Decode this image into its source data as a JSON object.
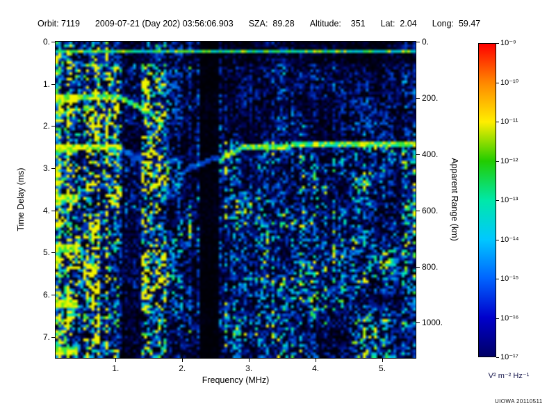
{
  "header": {
    "orbit": "Orbit: 7119",
    "datetime": "2009-07-21 (Day 202) 03:56:06.903",
    "sza": "SZA:  89.28",
    "altitude": "Altitude:    351",
    "lat": "Lat:  2.04",
    "long": "Long:  59.47"
  },
  "watermark": "UIOWA 20110511",
  "chart_data": {
    "type": "heatmap",
    "title": "",
    "x_axis": {
      "label": "Frequency (MHz)",
      "min": 0.1,
      "max": 5.5,
      "ticks": [
        {
          "v": 1,
          "label": "1."
        },
        {
          "v": 2,
          "label": "2."
        },
        {
          "v": 3,
          "label": "3."
        },
        {
          "v": 4,
          "label": "4."
        },
        {
          "v": 5,
          "label": "5."
        }
      ]
    },
    "y_axis": {
      "label": "Time Delay (ms)",
      "min": 0,
      "max": 7.5,
      "ticks": [
        {
          "v": 0,
          "label": "0."
        },
        {
          "v": 1,
          "label": "1."
        },
        {
          "v": 2,
          "label": "2."
        },
        {
          "v": 3,
          "label": "3."
        },
        {
          "v": 4,
          "label": "4."
        },
        {
          "v": 5,
          "label": "5."
        },
        {
          "v": 6,
          "label": "6."
        },
        {
          "v": 7,
          "label": "7."
        }
      ]
    },
    "y2_axis": {
      "label": "Apparent Range (km)",
      "km_per_ms": 150,
      "ticks": [
        {
          "v": 0,
          "label": "0."
        },
        {
          "v": 200,
          "label": "200."
        },
        {
          "v": 400,
          "label": "400."
        },
        {
          "v": 600,
          "label": "600."
        },
        {
          "v": 800,
          "label": "800."
        },
        {
          "v": 1000,
          "label": "1000."
        }
      ]
    },
    "colorbar": {
      "unit": "V² m⁻² Hz⁻¹",
      "scale_min": "10⁻¹⁷",
      "scale_max": "10⁻⁹",
      "tick_labels": [
        "10⁻⁹",
        "10⁻¹⁰",
        "10⁻¹¹",
        "10⁻¹²",
        "10⁻¹³",
        "10⁻¹⁴",
        "10⁻¹⁵",
        "10⁻¹⁶",
        "10⁻¹⁷"
      ],
      "gradient": [
        "#ff0000",
        "#ff8800",
        "#ffee00",
        "#22cc00",
        "#00e8a8",
        "#00c8ff",
        "#0064ff",
        "#0000cc",
        "#000066"
      ]
    },
    "colormap_stops": [
      [
        0.0,
        "#000004"
      ],
      [
        0.12,
        "#000048"
      ],
      [
        0.3,
        "#0020a8"
      ],
      [
        0.5,
        "#0064e0"
      ],
      [
        0.65,
        "#00b8e8"
      ],
      [
        0.78,
        "#00e8b0"
      ],
      [
        0.88,
        "#32e032"
      ],
      [
        0.96,
        "#b4f000"
      ],
      [
        1.0,
        "#f4f400"
      ]
    ],
    "seed": 20110511,
    "features": {
      "transmit_pulse_line": {
        "delay_ms": 0.22,
        "f_start": 0.1,
        "f_end": 5.5,
        "intensity": 0.85
      },
      "ionosphere_echo_trace": {
        "points": [
          [
            2.55,
            2.8
          ],
          [
            2.9,
            2.5
          ],
          [
            4.0,
            2.45
          ],
          [
            5.5,
            2.42
          ]
        ],
        "intensity": 0.88
      },
      "cusp_trace": {
        "points": [
          [
            0.1,
            1.28
          ],
          [
            1.1,
            1.35
          ],
          [
            1.45,
            1.62
          ],
          [
            1.68,
            1.95
          ]
        ],
        "intensity": 0.85
      },
      "second_harmonic_band": {
        "points": [
          [
            0.1,
            2.52
          ],
          [
            1.05,
            2.5
          ]
        ],
        "intensity": 0.92
      },
      "fading_trace": {
        "points": [
          [
            1.05,
            2.55
          ],
          [
            1.5,
            2.95
          ],
          [
            1.72,
            3.5
          ]
        ],
        "intensity": 0.45
      },
      "echo_cusp_curve": {
        "points": [
          [
            1.75,
            3.7
          ],
          [
            2.05,
            3.0
          ],
          [
            2.5,
            2.75
          ]
        ],
        "intensity": 0.4
      },
      "attenuation_gap": {
        "f_start": 2.24,
        "f_end": 2.54
      },
      "quiet_gap": {
        "f_start": 1.08,
        "f_end": 1.38
      },
      "cyclotron_period_mhz": 0.14,
      "left_edge_blob_delays": [
        1.3,
        2.5,
        3.7,
        4.9,
        6.2,
        7.3
      ]
    }
  }
}
